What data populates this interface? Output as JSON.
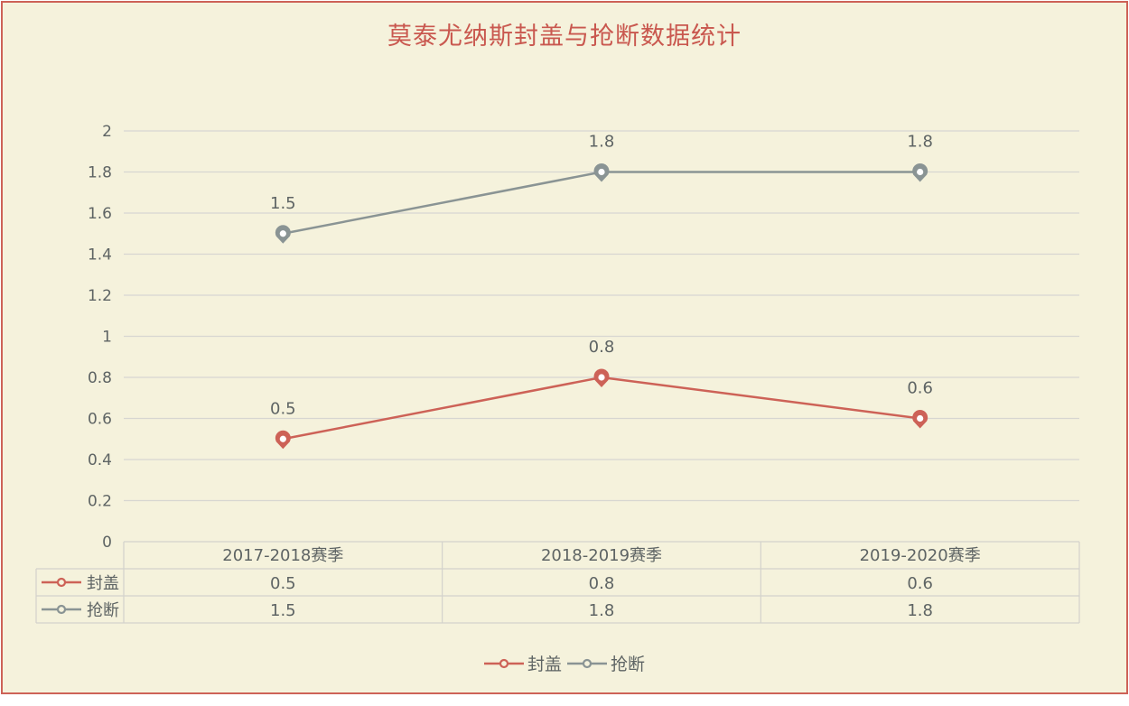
{
  "chart_data": {
    "type": "line",
    "title": "莫泰尤纳斯封盖与抢断数据统计",
    "categories": [
      "2017-2018赛季",
      "2018-2019赛季",
      "2019-2020赛季"
    ],
    "series": [
      {
        "name": "封盖",
        "values": [
          0.5,
          0.8,
          0.6
        ],
        "color": "#cd6257"
      },
      {
        "name": "抢断",
        "values": [
          1.5,
          1.8,
          1.8
        ],
        "color": "#8a9494"
      }
    ],
    "y_ticks": [
      "0",
      "0.2",
      "0.4",
      "0.6",
      "0.8",
      "1",
      "1.2",
      "1.4",
      "1.6",
      "1.8",
      "2"
    ],
    "ylim": [
      0,
      2
    ],
    "grid": true,
    "legend": "bottom",
    "data_table": true
  }
}
